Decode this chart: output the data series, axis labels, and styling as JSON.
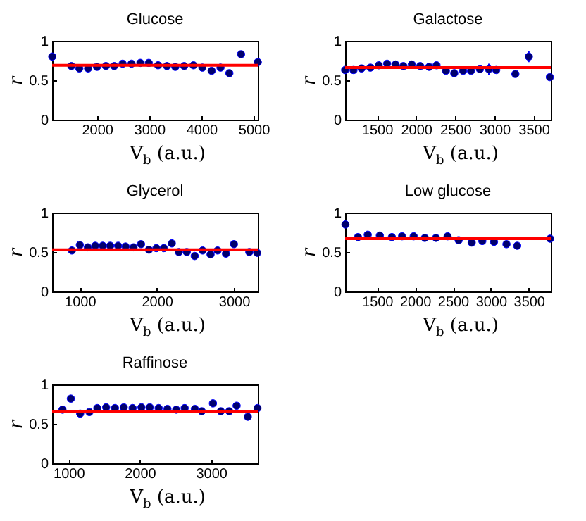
{
  "chart_data": [
    {
      "type": "scatter",
      "title": "Glucose",
      "xlabel": "V$_{b}$ (a.u.)",
      "ylabel": "r",
      "marker": "circle",
      "xlim": [
        1140,
        5080
      ],
      "xticks": [
        2000,
        3000,
        4000,
        5000
      ],
      "ylim": [
        0,
        1
      ],
      "yticks": [
        0,
        0.5,
        1
      ],
      "x": [
        1143,
        1509,
        1661,
        1830,
        2000,
        2170,
        2330,
        2491,
        2661,
        2830,
        2991,
        3170,
        3339,
        3500,
        3670,
        3848,
        4018,
        4196,
        4366,
        4536,
        4759,
        5080
      ],
      "series": [
        {
          "color": "#00006e",
          "values": [
            0.8,
            0.68,
            0.65,
            0.65,
            0.67,
            0.68,
            0.68,
            0.71,
            0.71,
            0.72,
            0.72,
            0.69,
            0.68,
            0.67,
            0.68,
            0.69,
            0.66,
            0.62,
            0.66,
            0.59,
            0.83,
            0.73
          ]
        }
      ],
      "ref_lines": [
        {
          "axis": "y",
          "value": 0.69,
          "color": "#ff0000"
        }
      ]
    },
    {
      "type": "scatter",
      "title": "Galactose",
      "xlabel": "V$_{b}$ (a.u.)",
      "ylabel": "r",
      "marker": "circle",
      "xlim": [
        1095,
        3720
      ],
      "xticks": [
        1500,
        2000,
        2500,
        3000,
        3500
      ],
      "ylim": [
        0,
        1
      ],
      "yticks": [
        0,
        0.5,
        1
      ],
      "x": [
        1095,
        1202,
        1304,
        1417,
        1524,
        1631,
        1738,
        1839,
        1946,
        2054,
        2167,
        2262,
        2381,
        2488,
        2601,
        2702,
        2815,
        2929,
        3024,
        3268,
        3440,
        3708
      ],
      "series": [
        {
          "color": "#00006e",
          "values": [
            0.63,
            0.63,
            0.65,
            0.66,
            0.69,
            0.71,
            0.7,
            0.68,
            0.7,
            0.68,
            0.67,
            0.69,
            0.62,
            0.59,
            0.62,
            0.62,
            0.64,
            0.64,
            0.63,
            0.58,
            0.8,
            0.54
          ],
          "errors": [
            null,
            null,
            null,
            null,
            null,
            null,
            null,
            null,
            null,
            null,
            null,
            null,
            null,
            null,
            null,
            null,
            null,
            0.07,
            null,
            null,
            0.07,
            null
          ]
        }
      ],
      "ref_lines": [
        {
          "axis": "y",
          "value": 0.66,
          "color": "#ff0000"
        }
      ]
    },
    {
      "type": "scatter",
      "title": "Glycerol",
      "xlabel": "V$_{b}$ (a.u.)",
      "ylabel": "r",
      "marker": "circle",
      "xlim": [
        640,
        3310
      ],
      "xticks": [
        1000,
        2000,
        3000
      ],
      "ylim": [
        0,
        1
      ],
      "yticks": [
        0,
        0.5,
        1
      ],
      "x": [
        897,
        1000,
        1103,
        1200,
        1297,
        1394,
        1497,
        1594,
        1697,
        1794,
        1897,
        1994,
        2091,
        2194,
        2285,
        2388,
        2491,
        2594,
        2697,
        2788,
        2897,
        3000,
        3200,
        3303
      ],
      "series": [
        {
          "color": "#00006e",
          "values": [
            0.52,
            0.59,
            0.56,
            0.58,
            0.58,
            0.58,
            0.58,
            0.57,
            0.56,
            0.6,
            0.53,
            0.55,
            0.55,
            0.61,
            0.5,
            0.5,
            0.45,
            0.52,
            0.47,
            0.52,
            0.48,
            0.6,
            0.5,
            0.49
          ]
        }
      ],
      "ref_lines": [
        {
          "axis": "y",
          "value": 0.53,
          "color": "#ff0000"
        }
      ]
    },
    {
      "type": "scatter",
      "title": "Low glucose",
      "xlabel": "V$_{b}$ (a.u.)",
      "ylabel": "r",
      "marker": "circle",
      "xlim": [
        1080,
        3790
      ],
      "xticks": [
        1500,
        2000,
        2500,
        3000,
        3500
      ],
      "ylim": [
        0,
        1
      ],
      "yticks": [
        0,
        0.5,
        1
      ],
      "x": [
        1084,
        1249,
        1378,
        1537,
        1696,
        1830,
        1983,
        2130,
        2277,
        2430,
        2576,
        2748,
        2888,
        3041,
        3206,
        3347,
        3781
      ],
      "series": [
        {
          "color": "#00006e",
          "values": [
            0.85,
            0.69,
            0.72,
            0.71,
            0.69,
            0.7,
            0.7,
            0.68,
            0.68,
            0.7,
            0.65,
            0.62,
            0.64,
            0.63,
            0.6,
            0.58,
            0.67
          ]
        }
      ],
      "ref_lines": [
        {
          "axis": "y",
          "value": 0.67,
          "color": "#ff0000"
        }
      ]
    },
    {
      "type": "scatter",
      "title": "Raffinose",
      "xlabel": "V$_{b}$ (a.u.)",
      "ylabel": "r",
      "marker": "circle",
      "xlim": [
        770,
        3655
      ],
      "xticks": [
        1000,
        2000,
        3000
      ],
      "ylim": [
        0,
        1
      ],
      "yticks": [
        0,
        0.5,
        1
      ],
      "x": [
        915,
        1033,
        1163,
        1293,
        1404,
        1528,
        1651,
        1775,
        1899,
        2023,
        2140,
        2264,
        2388,
        2511,
        2629,
        2772,
        2870,
        3026,
        3137,
        3254,
        3358,
        3515,
        3651
      ],
      "series": [
        {
          "color": "#00006e",
          "values": [
            0.68,
            0.82,
            0.63,
            0.65,
            0.7,
            0.71,
            0.7,
            0.71,
            0.7,
            0.71,
            0.71,
            0.7,
            0.69,
            0.68,
            0.7,
            0.69,
            0.66,
            0.76,
            0.66,
            0.66,
            0.73,
            0.59,
            0.7
          ],
          "errors": [
            null,
            null,
            null,
            null,
            null,
            null,
            null,
            null,
            null,
            null,
            null,
            null,
            null,
            null,
            null,
            null,
            null,
            0.04,
            null,
            null,
            0.04,
            null,
            null
          ]
        }
      ],
      "ref_lines": [
        {
          "axis": "y",
          "value": 0.66,
          "color": "#ff0000"
        }
      ]
    }
  ]
}
